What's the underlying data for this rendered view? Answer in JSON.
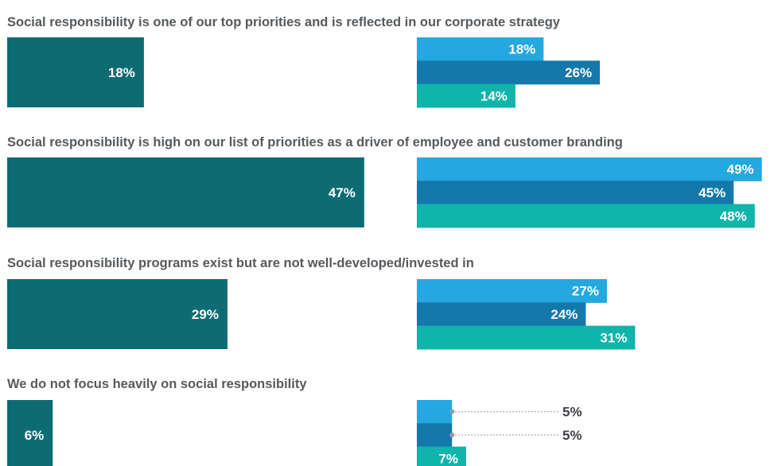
{
  "chart_data": {
    "type": "bar",
    "categories": [
      "Social responsibility is one of our top priorities and is reflected in our corporate strategy",
      "Social responsibility is high on our list of priorities as a driver of employee and customer branding",
      "Social responsibility programs exist but are not well-developed/invested in",
      "We do not focus heavily on social responsibility"
    ],
    "overall": [
      18,
      47,
      29,
      6
    ],
    "series": [
      {
        "values": [
          18,
          49,
          27,
          5
        ]
      },
      {
        "values": [
          26,
          45,
          24,
          5
        ]
      },
      {
        "values": [
          14,
          48,
          31,
          7
        ]
      }
    ],
    "value_suffix": "%",
    "xlim": [
      0,
      50
    ]
  },
  "colors": {
    "overall": "#0d6b73",
    "series": [
      "#24a8df",
      "#1478ab",
      "#0fb4ab"
    ],
    "title": "#555a5e",
    "leader": "#9a9a9a"
  }
}
